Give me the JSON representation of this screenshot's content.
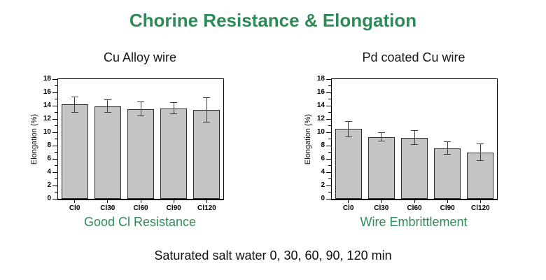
{
  "page": {
    "title": "Chorine Resistance & Elongation",
    "bottom_note": "Saturated salt water 0, 30, 60, 90, 120 min"
  },
  "colors": {
    "title_green": "#2E8B57",
    "caption_green": "#2E8B57",
    "bar_fill": "#C4C4C4",
    "bar_edge": "#2e2e2e",
    "error_bar": "#3d3d3d",
    "axis_black": "#000000",
    "text_black": "#111111"
  },
  "chart_data": [
    {
      "type": "bar",
      "title": "Cu Alloy wire",
      "caption": "Good Cl Resistance",
      "ylabel": "Elongation (%)",
      "xlabel": "",
      "ylim": [
        0,
        18
      ],
      "ytick_step": 2,
      "minor_ticks": true,
      "grid": false,
      "legend": "none",
      "categories": [
        "Cl0",
        "Cl30",
        "Cl60",
        "Cl90",
        "Cl120"
      ],
      "values": [
        14.2,
        13.9,
        13.5,
        13.6,
        13.4
      ],
      "errors": [
        1.2,
        1.0,
        1.1,
        0.9,
        1.9
      ]
    },
    {
      "type": "bar",
      "title": "Pd coated Cu wire",
      "caption": "Wire Embrittlement",
      "ylabel": "Elongation (%)",
      "xlabel": "",
      "ylim": [
        0,
        18
      ],
      "ytick_step": 2,
      "minor_ticks": true,
      "grid": false,
      "legend": "none",
      "categories": [
        "Cl0",
        "Cl30",
        "Cl60",
        "Cl90",
        "Cl120"
      ],
      "values": [
        10.5,
        9.3,
        9.2,
        7.6,
        7.0
      ],
      "errors": [
        1.2,
        0.7,
        1.1,
        1.0,
        1.3
      ]
    }
  ]
}
